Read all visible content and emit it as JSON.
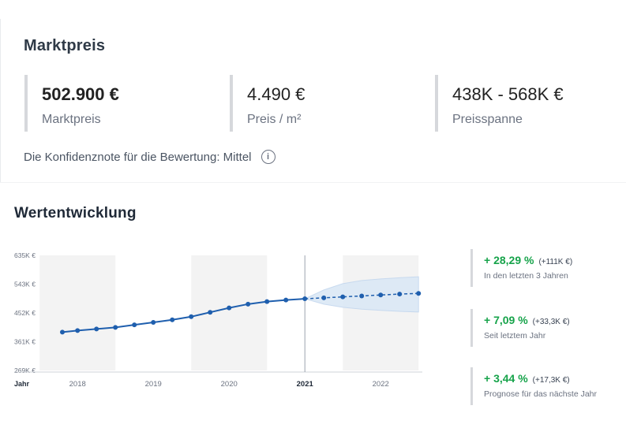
{
  "market": {
    "title": "Marktpreis",
    "stats": [
      {
        "value": "502.900 €",
        "label": "Marktpreis"
      },
      {
        "value": "4.490 €",
        "label": "Preis / m²"
      },
      {
        "value": "438K - 568K €",
        "label": "Preisspanne"
      }
    ],
    "confidence_text": "Die Konfidenznote für die Bewertung: Mittel",
    "info_icon": "info-icon"
  },
  "development": {
    "title": "Wertentwicklung",
    "kpis": [
      {
        "pct": "+ 28,29 %",
        "abs": "(+111K €)",
        "sub": "In den letzten 3 Jahren"
      },
      {
        "pct": "+ 7,09 %",
        "abs": "(+33,3K €)",
        "sub": "Seit letztem Jahr"
      },
      {
        "pct": "+ 3,44 %",
        "abs": "(+17,3K €)",
        "sub": "Prognose für das nächste Jahr"
      }
    ]
  },
  "chart_data": {
    "type": "line",
    "xlabel": "Jahr",
    "ylabel": "",
    "x_ticks": [
      "2018",
      "2019",
      "2020",
      "2021",
      "2022"
    ],
    "y_ticks": [
      "269K €",
      "361K €",
      "452K €",
      "543K €",
      "635K €"
    ],
    "y_tick_values": [
      269,
      361,
      452,
      543,
      635
    ],
    "ylim": [
      269,
      635
    ],
    "xlim": [
      2017.55,
      2022.55
    ],
    "current_year": "2021",
    "colors": {
      "line": "#1f5fae",
      "band": "#dbe8f6",
      "shade": "#f3f3f3",
      "tick": "#6b7280"
    },
    "history": {
      "name": "",
      "x": [
        2017.8,
        2018.0,
        2018.25,
        2018.5,
        2018.75,
        2019.0,
        2019.25,
        2019.5,
        2019.75,
        2020.0,
        2020.25,
        2020.5,
        2020.75,
        2021.0
      ],
      "values": [
        391,
        396,
        401,
        406,
        414,
        422,
        430,
        440,
        454,
        468,
        480,
        488,
        493,
        497
      ]
    },
    "forecast": {
      "name": "",
      "x": [
        2021.0,
        2021.25,
        2021.5,
        2021.75,
        2022.0,
        2022.25,
        2022.5
      ],
      "values": [
        497,
        500,
        503,
        506,
        509,
        512,
        514
      ],
      "upper": [
        497,
        525,
        545,
        555,
        560,
        564,
        567
      ],
      "lower": [
        497,
        480,
        470,
        464,
        460,
        457,
        455
      ]
    }
  }
}
